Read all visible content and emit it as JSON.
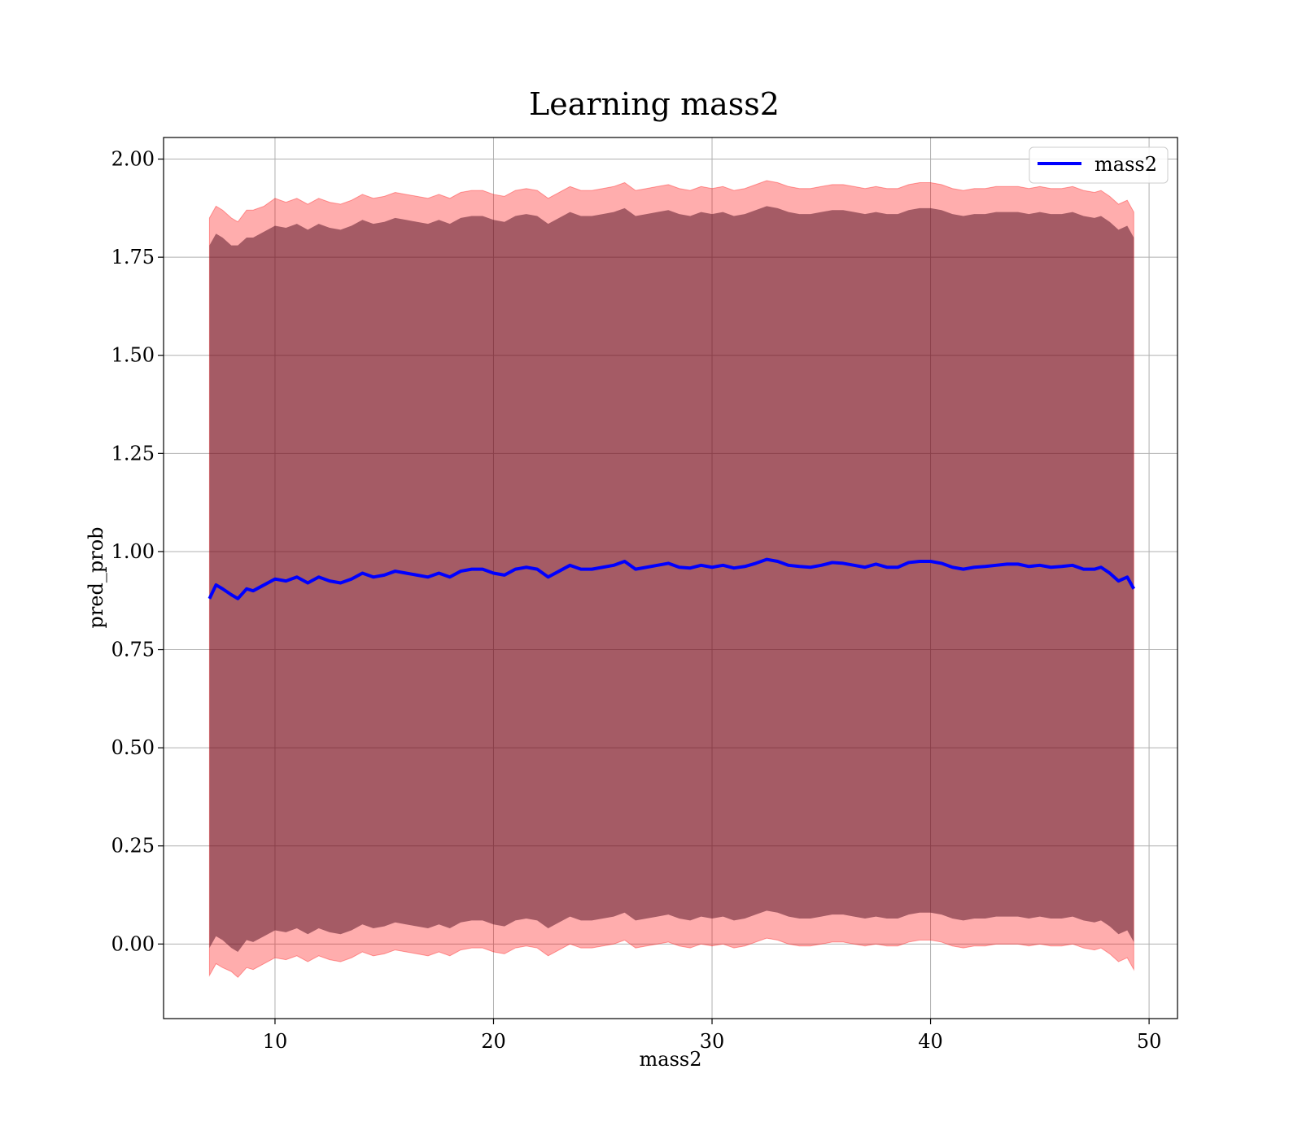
{
  "chart_data": {
    "type": "line",
    "title": "Learning mass2",
    "xlabel": "mass2",
    "ylabel": "pred_prob",
    "xlim": [
      4.9,
      51.3
    ],
    "ylim": [
      -0.19,
      2.055
    ],
    "xticks": [
      10,
      20,
      30,
      40,
      50
    ],
    "xtick_labels": [
      "10",
      "20",
      "30",
      "40",
      "50"
    ],
    "yticks": [
      0.0,
      0.25,
      0.5,
      0.75,
      1.0,
      1.25,
      1.5,
      1.75,
      2.0
    ],
    "ytick_labels": [
      "0.00",
      "0.25",
      "0.50",
      "0.75",
      "1.00",
      "1.25",
      "1.50",
      "1.75",
      "2.00"
    ],
    "grid": true,
    "legend_position": "top-right",
    "colors": {
      "line": "#0000ff",
      "outer_band": "#ff0000",
      "inner_band": "#4b0a1e"
    },
    "series": [
      {
        "name": "mass2",
        "x": [
          7.0,
          7.3,
          7.6,
          8.0,
          8.3,
          8.7,
          9.0,
          9.5,
          10.0,
          10.5,
          11.0,
          11.5,
          12.0,
          12.5,
          13.0,
          13.5,
          14.0,
          14.5,
          15.0,
          15.5,
          16.0,
          16.5,
          17.0,
          17.5,
          18.0,
          18.5,
          19.0,
          19.5,
          20.0,
          20.5,
          21.0,
          21.5,
          22.0,
          22.5,
          23.0,
          23.5,
          24.0,
          24.5,
          25.0,
          25.5,
          26.0,
          26.5,
          27.0,
          27.5,
          28.0,
          28.5,
          29.0,
          29.5,
          30.0,
          30.5,
          31.0,
          31.5,
          32.0,
          32.5,
          33.0,
          33.5,
          34.0,
          34.5,
          35.0,
          35.5,
          36.0,
          36.5,
          37.0,
          37.5,
          38.0,
          38.5,
          39.0,
          39.5,
          40.0,
          40.5,
          41.0,
          41.5,
          42.0,
          42.5,
          43.0,
          43.5,
          44.0,
          44.5,
          45.0,
          45.5,
          46.0,
          46.5,
          47.0,
          47.5,
          47.8,
          48.2,
          48.6,
          49.0,
          49.3
        ],
        "y": [
          0.88,
          0.915,
          0.905,
          0.89,
          0.88,
          0.905,
          0.9,
          0.915,
          0.93,
          0.925,
          0.935,
          0.92,
          0.935,
          0.925,
          0.92,
          0.93,
          0.945,
          0.935,
          0.94,
          0.95,
          0.945,
          0.94,
          0.935,
          0.945,
          0.935,
          0.95,
          0.955,
          0.955,
          0.945,
          0.94,
          0.955,
          0.96,
          0.955,
          0.935,
          0.95,
          0.965,
          0.955,
          0.955,
          0.96,
          0.965,
          0.975,
          0.955,
          0.96,
          0.965,
          0.97,
          0.96,
          0.958,
          0.965,
          0.96,
          0.965,
          0.958,
          0.962,
          0.97,
          0.98,
          0.975,
          0.965,
          0.962,
          0.96,
          0.965,
          0.972,
          0.97,
          0.965,
          0.96,
          0.968,
          0.96,
          0.96,
          0.972,
          0.975,
          0.975,
          0.97,
          0.96,
          0.955,
          0.96,
          0.962,
          0.965,
          0.968,
          0.968,
          0.962,
          0.965,
          0.96,
          0.962,
          0.965,
          0.955,
          0.955,
          0.96,
          0.945,
          0.925,
          0.935,
          0.905
        ]
      }
    ],
    "bands": [
      {
        "layer": "outer",
        "upper": [
          1.85,
          1.88,
          1.87,
          1.85,
          1.84,
          1.87,
          1.87,
          1.88,
          1.9,
          1.89,
          1.9,
          1.885,
          1.9,
          1.89,
          1.885,
          1.895,
          1.91,
          1.9,
          1.905,
          1.915,
          1.91,
          1.905,
          1.9,
          1.91,
          1.9,
          1.915,
          1.92,
          1.92,
          1.91,
          1.905,
          1.92,
          1.925,
          1.92,
          1.9,
          1.915,
          1.93,
          1.92,
          1.92,
          1.925,
          1.93,
          1.94,
          1.92,
          1.925,
          1.93,
          1.935,
          1.925,
          1.92,
          1.93,
          1.925,
          1.93,
          1.92,
          1.925,
          1.935,
          1.945,
          1.94,
          1.93,
          1.925,
          1.925,
          1.93,
          1.935,
          1.935,
          1.93,
          1.925,
          1.93,
          1.925,
          1.925,
          1.935,
          1.94,
          1.94,
          1.935,
          1.925,
          1.92,
          1.925,
          1.925,
          1.93,
          1.93,
          1.93,
          1.925,
          1.93,
          1.925,
          1.925,
          1.93,
          1.92,
          1.915,
          1.92,
          1.905,
          1.885,
          1.895,
          1.865
        ],
        "lower": [
          -0.08,
          -0.05,
          -0.06,
          -0.07,
          -0.085,
          -0.06,
          -0.065,
          -0.05,
          -0.035,
          -0.04,
          -0.03,
          -0.045,
          -0.03,
          -0.04,
          -0.045,
          -0.035,
          -0.02,
          -0.03,
          -0.025,
          -0.015,
          -0.02,
          -0.025,
          -0.03,
          -0.02,
          -0.03,
          -0.015,
          -0.01,
          -0.01,
          -0.02,
          -0.025,
          -0.01,
          -0.005,
          -0.01,
          -0.03,
          -0.015,
          0.0,
          -0.01,
          -0.01,
          -0.005,
          0.0,
          0.01,
          -0.01,
          -0.005,
          0.0,
          0.005,
          -0.005,
          -0.01,
          0.0,
          -0.005,
          0.0,
          -0.01,
          -0.005,
          0.005,
          0.015,
          0.01,
          0.0,
          -0.005,
          -0.005,
          0.0,
          0.005,
          0.005,
          0.0,
          -0.005,
          0.0,
          -0.005,
          -0.005,
          0.005,
          0.01,
          0.01,
          0.005,
          -0.005,
          -0.01,
          -0.005,
          -0.005,
          0.0,
          0.0,
          0.0,
          -0.005,
          0.0,
          -0.005,
          -0.005,
          0.0,
          -0.01,
          -0.015,
          -0.01,
          -0.025,
          -0.045,
          -0.035,
          -0.065
        ]
      },
      {
        "layer": "inner",
        "upper": [
          1.78,
          1.81,
          1.8,
          1.78,
          1.78,
          1.8,
          1.8,
          1.815,
          1.83,
          1.825,
          1.835,
          1.82,
          1.835,
          1.825,
          1.82,
          1.83,
          1.845,
          1.835,
          1.84,
          1.85,
          1.845,
          1.84,
          1.835,
          1.845,
          1.835,
          1.85,
          1.855,
          1.855,
          1.845,
          1.84,
          1.855,
          1.86,
          1.855,
          1.835,
          1.85,
          1.865,
          1.855,
          1.855,
          1.86,
          1.865,
          1.875,
          1.855,
          1.86,
          1.865,
          1.87,
          1.86,
          1.855,
          1.865,
          1.86,
          1.865,
          1.855,
          1.86,
          1.87,
          1.88,
          1.875,
          1.865,
          1.86,
          1.86,
          1.865,
          1.87,
          1.87,
          1.865,
          1.86,
          1.865,
          1.86,
          1.86,
          1.87,
          1.875,
          1.875,
          1.87,
          1.86,
          1.855,
          1.86,
          1.86,
          1.865,
          1.865,
          1.865,
          1.86,
          1.865,
          1.86,
          1.86,
          1.865,
          1.855,
          1.85,
          1.855,
          1.84,
          1.82,
          1.83,
          1.8
        ],
        "lower": [
          -0.01,
          0.02,
          0.01,
          -0.01,
          -0.02,
          0.01,
          0.005,
          0.02,
          0.035,
          0.03,
          0.04,
          0.025,
          0.04,
          0.03,
          0.025,
          0.035,
          0.05,
          0.04,
          0.045,
          0.055,
          0.05,
          0.045,
          0.04,
          0.05,
          0.04,
          0.055,
          0.06,
          0.06,
          0.05,
          0.045,
          0.06,
          0.065,
          0.06,
          0.04,
          0.055,
          0.07,
          0.06,
          0.06,
          0.065,
          0.07,
          0.08,
          0.06,
          0.065,
          0.07,
          0.075,
          0.065,
          0.06,
          0.07,
          0.065,
          0.07,
          0.06,
          0.065,
          0.075,
          0.085,
          0.08,
          0.07,
          0.065,
          0.065,
          0.07,
          0.075,
          0.075,
          0.07,
          0.065,
          0.07,
          0.065,
          0.065,
          0.075,
          0.08,
          0.08,
          0.075,
          0.065,
          0.06,
          0.065,
          0.065,
          0.07,
          0.07,
          0.07,
          0.065,
          0.07,
          0.065,
          0.065,
          0.07,
          0.06,
          0.055,
          0.06,
          0.045,
          0.025,
          0.035,
          0.005
        ]
      }
    ]
  }
}
